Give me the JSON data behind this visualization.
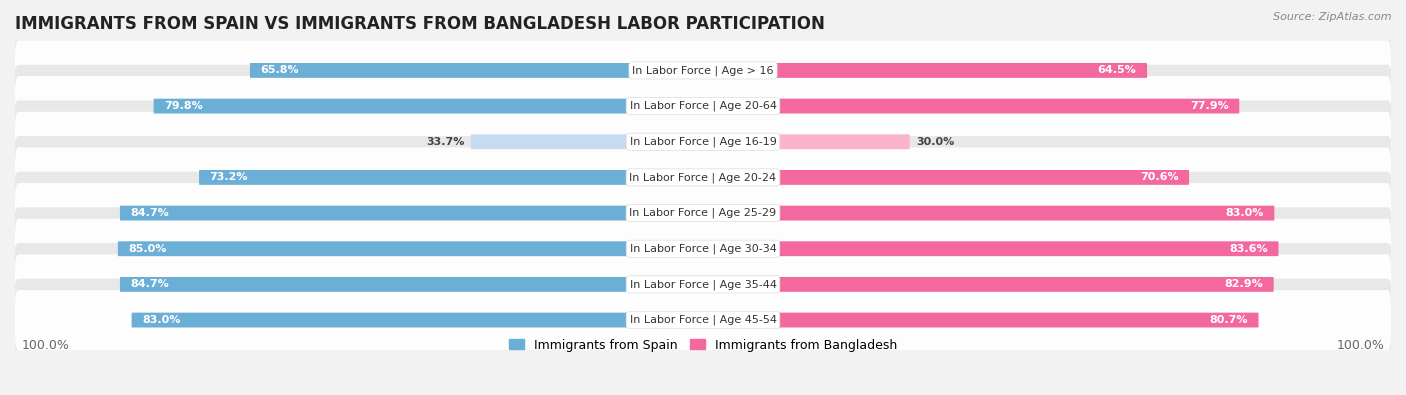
{
  "title": "IMMIGRANTS FROM SPAIN VS IMMIGRANTS FROM BANGLADESH LABOR PARTICIPATION",
  "source": "Source: ZipAtlas.com",
  "categories": [
    "In Labor Force | Age > 16",
    "In Labor Force | Age 20-64",
    "In Labor Force | Age 16-19",
    "In Labor Force | Age 20-24",
    "In Labor Force | Age 25-29",
    "In Labor Force | Age 30-34",
    "In Labor Force | Age 35-44",
    "In Labor Force | Age 45-54"
  ],
  "spain_values": [
    65.8,
    79.8,
    33.7,
    73.2,
    84.7,
    85.0,
    84.7,
    83.0
  ],
  "bangladesh_values": [
    64.5,
    77.9,
    30.0,
    70.6,
    83.0,
    83.6,
    82.9,
    80.7
  ],
  "spain_color": "#6baed6",
  "spain_color_light": "#c6dbef",
  "bangladesh_color": "#f468a0",
  "bangladesh_color_light": "#fbb4cc",
  "background_color": "#f2f2f2",
  "row_bg_color": "#ffffff",
  "max_value": 100.0,
  "legend_spain": "Immigrants from Spain",
  "legend_bangladesh": "Immigrants from Bangladesh",
  "title_fontsize": 12,
  "label_fontsize": 8,
  "value_fontsize": 8,
  "footer_fontsize": 9
}
